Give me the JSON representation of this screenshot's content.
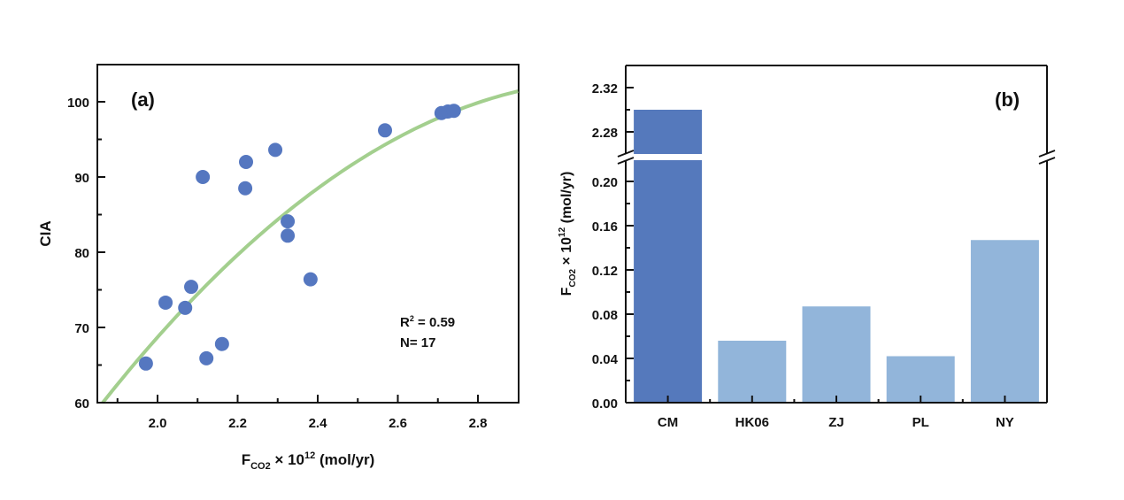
{
  "chart_data": [
    {
      "type": "scatter",
      "panel_label": "(a)",
      "xlabel": {
        "main": "F",
        "sub": "CO2",
        "rest": " × 10",
        "sup": "12",
        "unit": " (mol/yr)"
      },
      "ylabel": "CIA",
      "xlim": [
        1.85,
        2.9
      ],
      "ylim": [
        60,
        105
      ],
      "xticks": [
        "2.0",
        "2.2",
        "2.4",
        "2.6",
        "2.8"
      ],
      "xtick_values": [
        2.0,
        2.2,
        2.4,
        2.6,
        2.8
      ],
      "yticks": [
        "60",
        "70",
        "80",
        "90",
        "100"
      ],
      "ytick_values": [
        60,
        70,
        80,
        90,
        100
      ],
      "points": [
        [
          1.971,
          65.2
        ],
        [
          2.02,
          73.3
        ],
        [
          2.069,
          72.6
        ],
        [
          2.084,
          75.4
        ],
        [
          2.113,
          90.0
        ],
        [
          2.122,
          65.9
        ],
        [
          2.161,
          67.8
        ],
        [
          2.219,
          88.5
        ],
        [
          2.221,
          92.0
        ],
        [
          2.294,
          93.6
        ],
        [
          2.325,
          84.1
        ],
        [
          2.325,
          82.2
        ],
        [
          2.382,
          76.4
        ],
        [
          2.568,
          96.2
        ],
        [
          2.709,
          98.5
        ],
        [
          2.725,
          98.7
        ],
        [
          2.74,
          98.8
        ]
      ],
      "fit": {
        "type": "quadratic",
        "coefficients": [
          -26.3,
          165.2,
          -156.5
        ],
        "x_range": [
          1.863,
          2.9
        ]
      },
      "annotations": {
        "r2_label": "R",
        "r2_sup": "2",
        "r2_value": " = 0.59",
        "n": "N= 17"
      },
      "colors": {
        "points": "#5577c0",
        "fit": "#a3cf8e"
      },
      "grid": false
    },
    {
      "type": "bar",
      "panel_label": "(b)",
      "ylabel": {
        "main": "F",
        "sub": "CO2",
        "rest": " × 10",
        "sup": "12",
        "unit": " (mol/yr)"
      },
      "categories": [
        "CM",
        "HK06",
        "ZJ",
        "PL",
        "NY"
      ],
      "values": [
        2.3,
        0.056,
        0.087,
        0.042,
        0.147
      ],
      "axis_break": {
        "lower": [
          0,
          0.22
        ],
        "upper": [
          2.26,
          2.34
        ]
      },
      "yticks_lower": [
        "0.00",
        "0.04",
        "0.08",
        "0.12",
        "0.16",
        "0.20"
      ],
      "ytick_values_lower": [
        0,
        0.04,
        0.08,
        0.12,
        0.16,
        0.2
      ],
      "yticks_upper": [
        "2.28",
        "2.32"
      ],
      "ytick_values_upper": [
        2.28,
        2.32
      ],
      "colors": {
        "highlight": "#5579bc",
        "default": "#92b5da"
      },
      "highlight": [
        "CM"
      ],
      "grid": false
    }
  ]
}
